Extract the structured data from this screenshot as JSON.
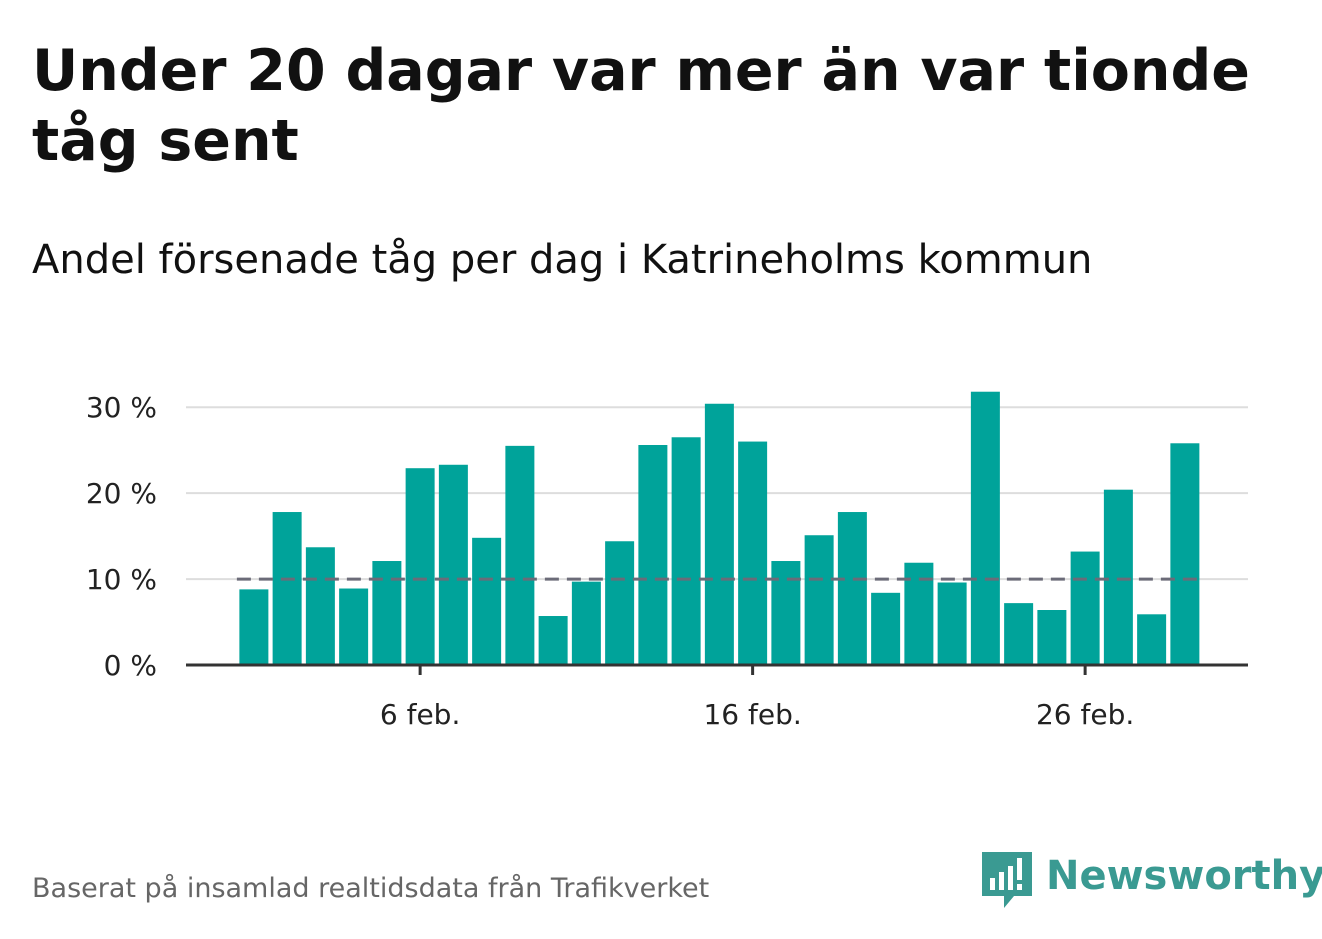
{
  "title": "Under 20 dagar var mer än var tionde tåg sent",
  "subtitle": "Andel försenade tåg per dag i Katrineholms kommun",
  "footer": "Baserat på insamlad realtidsdata från Trafikverket",
  "brand": "Newsworthy",
  "colors": {
    "bar": "#00a39a",
    "reference_line": "#6b6b78",
    "grid": "#dddddd",
    "axis": "#333333",
    "brand": "#3a9a92"
  },
  "chart_data": {
    "type": "bar",
    "x": [
      1,
      2,
      3,
      4,
      5,
      6,
      7,
      8,
      9,
      10,
      11,
      12,
      13,
      14,
      15,
      16,
      17,
      18,
      19,
      20,
      21,
      22,
      23,
      24,
      25,
      26,
      27,
      28,
      29
    ],
    "values": [
      8.8,
      17.8,
      13.7,
      8.9,
      12.1,
      22.9,
      23.3,
      14.8,
      25.5,
      5.7,
      9.7,
      14.4,
      25.6,
      26.5,
      30.4,
      26.0,
      12.1,
      15.1,
      17.8,
      8.4,
      11.9,
      9.6,
      31.8,
      7.2,
      6.4,
      13.2,
      20.4,
      5.9,
      25.8
    ],
    "x_ticks": [
      {
        "x": 6,
        "label": "6 feb."
      },
      {
        "x": 16,
        "label": "16 feb."
      },
      {
        "x": 26,
        "label": "26 feb."
      }
    ],
    "y_ticks": [
      {
        "value": 0,
        "label": "0 %"
      },
      {
        "value": 10,
        "label": "10 %"
      },
      {
        "value": 20,
        "label": "20 %"
      },
      {
        "value": 30,
        "label": "30 %"
      }
    ],
    "reference_line": 10,
    "ylim": [
      0,
      32
    ],
    "xlim": [
      -0.5,
      30.5
    ],
    "grid": true,
    "legend": "none"
  }
}
